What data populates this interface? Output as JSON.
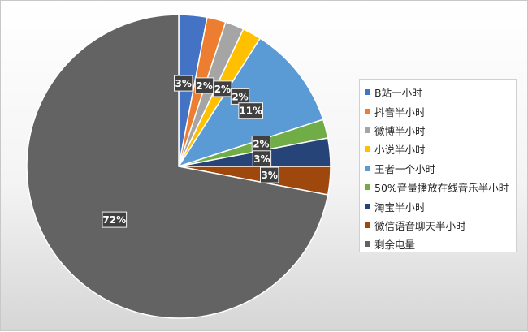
{
  "chart_data": {
    "type": "pie",
    "title": "",
    "legend_position": "right",
    "slices": [
      {
        "label": "B站一小时",
        "value": 3,
        "data_label": "3%",
        "color": "#4472C4"
      },
      {
        "label": "抖音半小时",
        "value": 2,
        "data_label": "2%",
        "color": "#ED7D31"
      },
      {
        "label": "微博半小时",
        "value": 2,
        "data_label": "2%",
        "color": "#A5A5A5"
      },
      {
        "label": "小说半小时",
        "value": 2,
        "data_label": "2%",
        "color": "#FFC000"
      },
      {
        "label": "王者一个小时",
        "value": 11,
        "data_label": "11%",
        "color": "#5B9BD5"
      },
      {
        "label": "50%音量播放在线音乐半小时",
        "value": 2,
        "data_label": "2%",
        "color": "#70AD47"
      },
      {
        "label": "淘宝半小时",
        "value": 3,
        "data_label": "3%",
        "color": "#264478"
      },
      {
        "label": "微信语音聊天半小时",
        "value": 3,
        "data_label": "3%",
        "color": "#9E480E"
      },
      {
        "label": "剩余电量",
        "value": 72,
        "data_label": "72%",
        "color": "#636363"
      }
    ]
  }
}
